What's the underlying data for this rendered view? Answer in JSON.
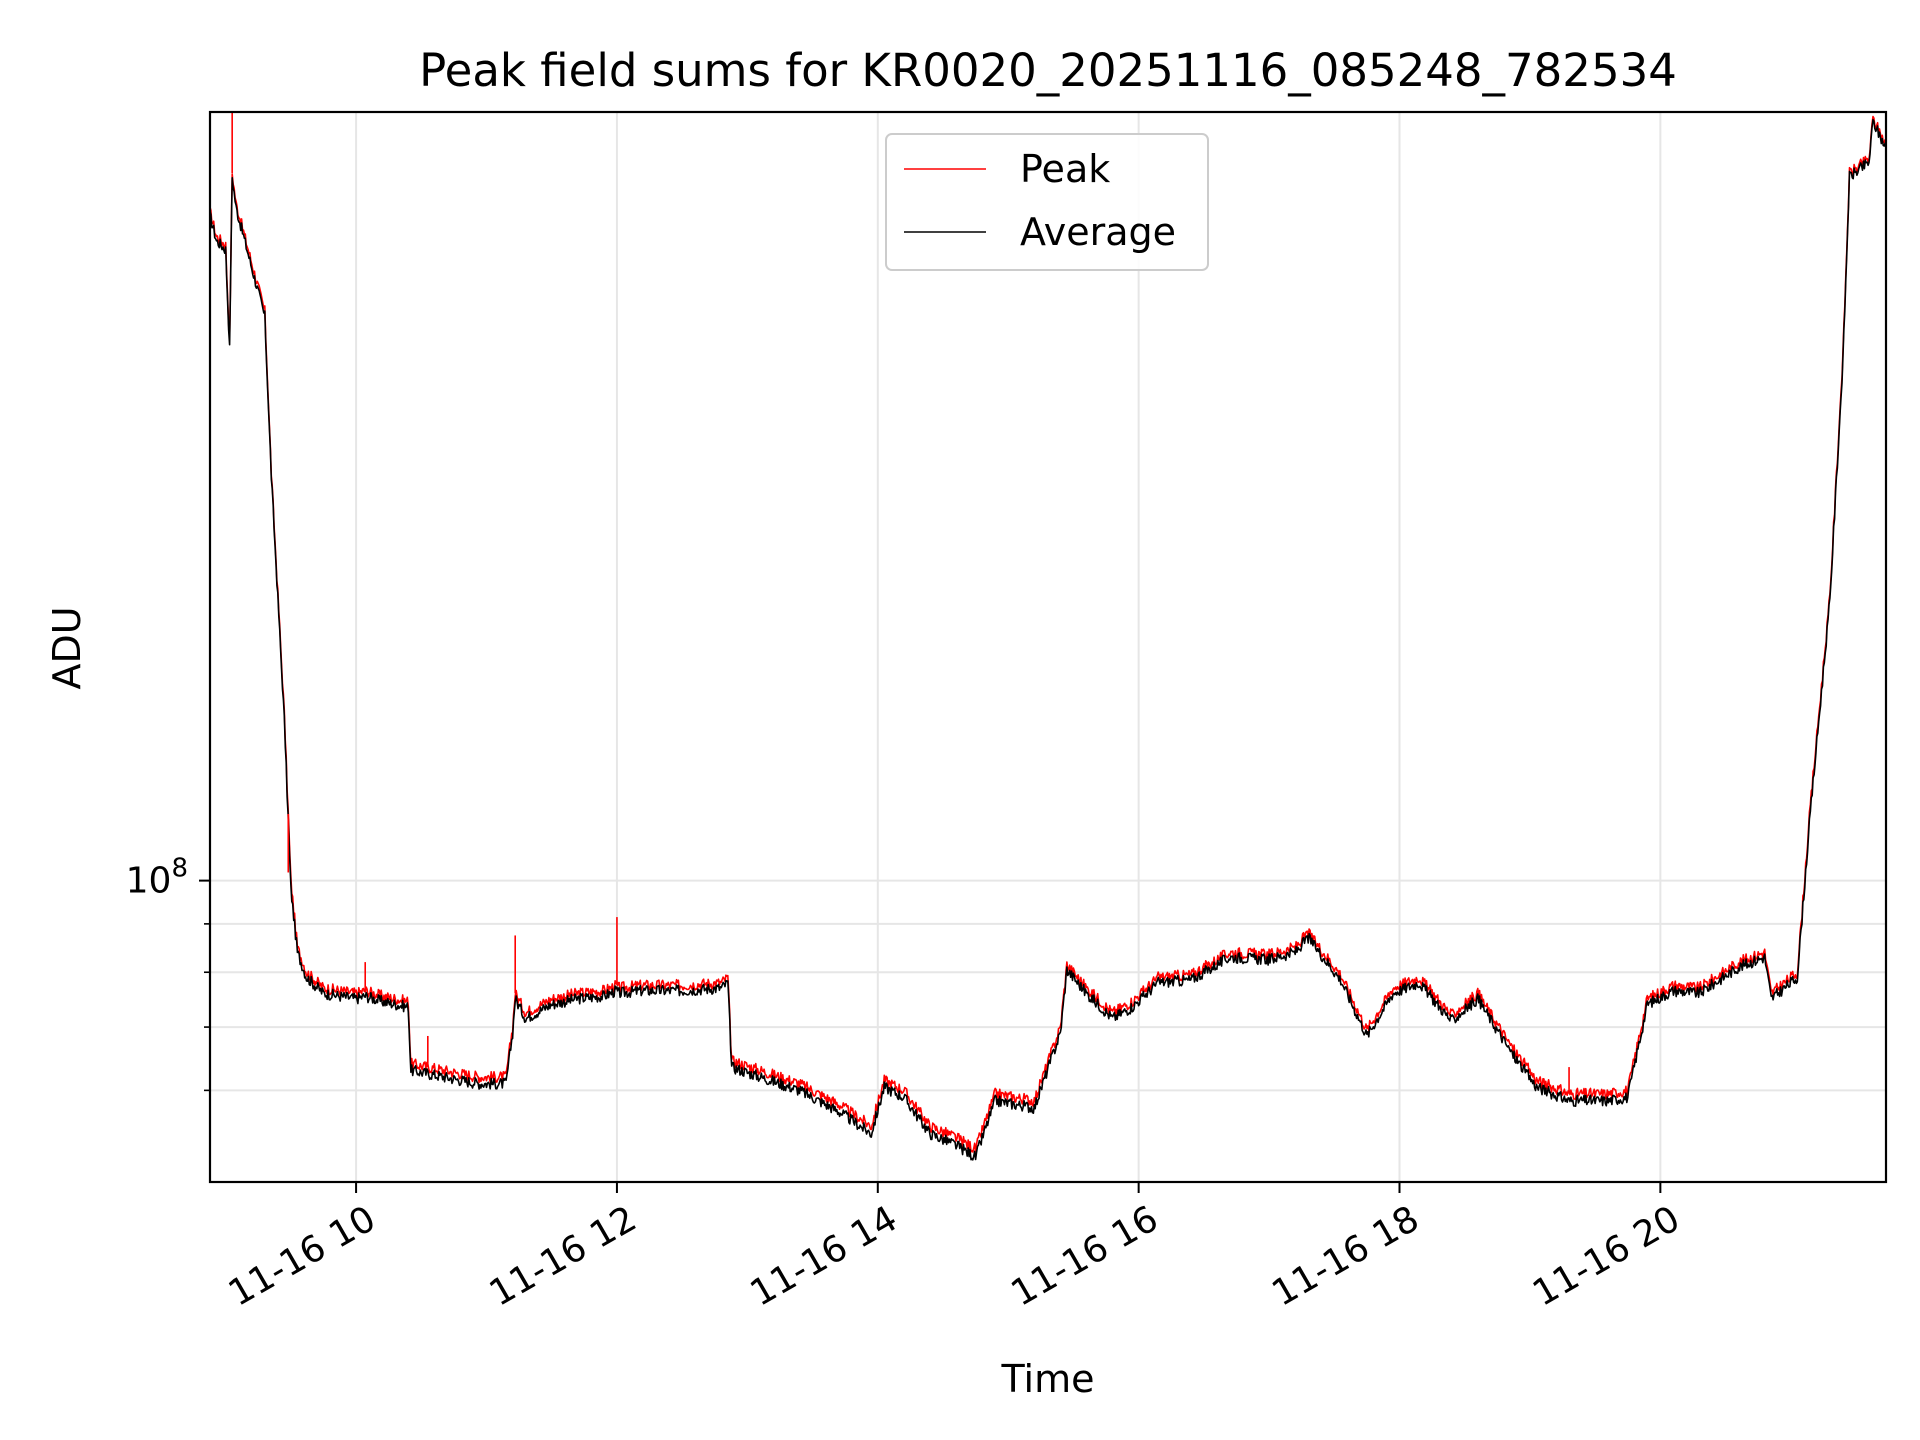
{
  "chart_data": {
    "type": "line",
    "title": "Peak field sums for KR0020_20251116_085248_782534",
    "xlabel": "Time",
    "ylabel": "ADU",
    "x_unit": "hours since 2025-11-16 00:00",
    "xlim": [
      8.88,
      21.73
    ],
    "y_scale": "log",
    "ylim": [
      48000000,
      650000000
    ],
    "grid": true,
    "legend_position": "upper center",
    "x_ticks": [
      {
        "value": 10,
        "label": "11-16 10"
      },
      {
        "value": 12,
        "label": "11-16 12"
      },
      {
        "value": 14,
        "label": "11-16 14"
      },
      {
        "value": 16,
        "label": "11-16 16"
      },
      {
        "value": 18,
        "label": "11-16 18"
      },
      {
        "value": 20,
        "label": "11-16 20"
      }
    ],
    "y_major_tick": {
      "value": 100000000,
      "label_base": "10",
      "label_exp": "8"
    },
    "y_minor_ticks": [
      60000000,
      70000000,
      80000000,
      90000000
    ],
    "series": [
      {
        "name": "Peak",
        "color": "#ff0000",
        "x": [
          8.88,
          8.93,
          9.0,
          9.03,
          9.05,
          9.08,
          9.2,
          9.3,
          9.35,
          9.45,
          9.5,
          9.55,
          9.62,
          9.75,
          10.0,
          10.07,
          10.2,
          10.4,
          10.42,
          10.55,
          10.8,
          10.95,
          11.15,
          11.2,
          11.22,
          11.3,
          11.5,
          11.7,
          11.9,
          12.0,
          12.01,
          12.2,
          12.5,
          12.8,
          12.85,
          12.88,
          13.1,
          13.4,
          13.7,
          13.95,
          14.05,
          14.2,
          14.4,
          14.6,
          14.75,
          14.9,
          15.2,
          15.4,
          15.45,
          15.6,
          15.8,
          15.95,
          16.15,
          16.4,
          16.7,
          17.0,
          17.2,
          17.3,
          17.55,
          17.75,
          17.95,
          18.15,
          18.4,
          18.6,
          18.85,
          19.05,
          19.3,
          19.6,
          19.75,
          19.9,
          20.1,
          20.3,
          20.6,
          20.8,
          20.85,
          21.05,
          21.15,
          21.3,
          21.4,
          21.45,
          21.6,
          21.63,
          21.73
        ],
        "y": [
          510000000,
          480000000,
          470000000,
          370000000,
          560000000,
          520000000,
          450000000,
          400000000,
          270000000,
          150000000,
          100000000,
          85000000,
          80000000,
          77000000,
          76000000,
          76500000,
          75500000,
          74500000,
          64000000,
          63500000,
          62500000,
          62000000,
          62000000,
          70000000,
          76000000,
          72500000,
          75000000,
          76000000,
          76500000,
          77500000,
          77000000,
          77500000,
          77500000,
          78000000,
          79000000,
          64500000,
          63000000,
          61000000,
          58000000,
          55000000,
          61500000,
          60000000,
          55000000,
          53500000,
          52000000,
          59500000,
          58500000,
          70000000,
          81500000,
          77000000,
          72500000,
          74500000,
          79000000,
          79500000,
          84000000,
          83500000,
          85000000,
          88000000,
          79500000,
          69500000,
          77000000,
          79000000,
          72000000,
          76000000,
          67000000,
          61500000,
          59500000,
          59500000,
          60000000,
          75000000,
          77500000,
          77000000,
          82000000,
          84000000,
          76000000,
          80000000,
          120000000,
          200000000,
          360000000,
          560000000,
          580000000,
          640000000,
          600000000
        ]
      },
      {
        "name": "Average",
        "color": "#000000",
        "x": [
          8.88,
          8.93,
          9.0,
          9.03,
          9.05,
          9.08,
          9.2,
          9.3,
          9.35,
          9.45,
          9.5,
          9.55,
          9.62,
          9.75,
          10.0,
          10.07,
          10.2,
          10.4,
          10.42,
          10.55,
          10.8,
          10.95,
          11.15,
          11.2,
          11.22,
          11.3,
          11.5,
          11.7,
          11.9,
          12.0,
          12.01,
          12.2,
          12.5,
          12.8,
          12.85,
          12.88,
          13.1,
          13.4,
          13.7,
          13.95,
          14.05,
          14.2,
          14.4,
          14.6,
          14.75,
          14.9,
          15.2,
          15.4,
          15.45,
          15.6,
          15.8,
          15.95,
          16.15,
          16.4,
          16.7,
          17.0,
          17.2,
          17.3,
          17.55,
          17.75,
          17.95,
          18.15,
          18.4,
          18.6,
          18.85,
          19.05,
          19.3,
          19.6,
          19.75,
          19.9,
          20.1,
          20.3,
          20.6,
          20.8,
          20.85,
          21.05,
          21.15,
          21.3,
          21.4,
          21.45,
          21.6,
          21.63,
          21.73
        ],
        "y": [
          505000000,
          475000000,
          465000000,
          365000000,
          555000000,
          515000000,
          445000000,
          395000000,
          268000000,
          148000000,
          98000000,
          84000000,
          79000000,
          76000000,
          75000000,
          75500000,
          74500000,
          73500000,
          63000000,
          62500000,
          61500000,
          61000000,
          61000000,
          69000000,
          75000000,
          71500000,
          74000000,
          75000000,
          75500000,
          76500000,
          76000000,
          76500000,
          76500000,
          77000000,
          78000000,
          63500000,
          62000000,
          60000000,
          57000000,
          54000000,
          60500000,
          59000000,
          54000000,
          52500000,
          51000000,
          58500000,
          57500000,
          69000000,
          80500000,
          76000000,
          71500000,
          73500000,
          78000000,
          78500000,
          83000000,
          82500000,
          84000000,
          87000000,
          78500000,
          68500000,
          76000000,
          78000000,
          71000000,
          75000000,
          66000000,
          60500000,
          58500000,
          58500000,
          59000000,
          74000000,
          76500000,
          76000000,
          81000000,
          83000000,
          75000000,
          79000000,
          118000000,
          198000000,
          355000000,
          555000000,
          575000000,
          635000000,
          595000000
        ]
      }
    ],
    "spikes": [
      {
        "series": "Peak",
        "x": 9.05,
        "y": 650000000
      },
      {
        "series": "Peak",
        "x": 9.48,
        "y": 102000000
      },
      {
        "series": "Peak",
        "x": 10.07,
        "y": 82000000
      },
      {
        "series": "Peak",
        "x": 10.55,
        "y": 68500000
      },
      {
        "series": "Peak",
        "x": 11.22,
        "y": 87500000
      },
      {
        "series": "Peak",
        "x": 12.0,
        "y": 91500000
      },
      {
        "series": "Peak",
        "x": 19.3,
        "y": 63500000
      }
    ]
  }
}
